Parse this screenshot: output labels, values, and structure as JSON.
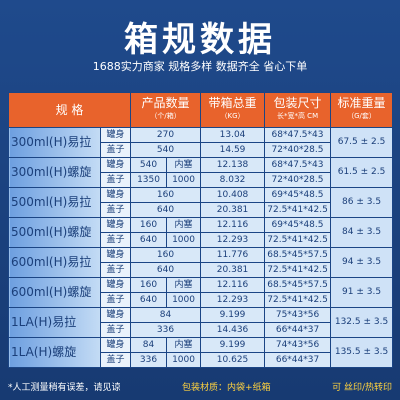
{
  "header": {
    "title": "箱规数据",
    "subtitle": "1688实力商家 规格多样 数据齐全 省心下单"
  },
  "table": {
    "columns": [
      {
        "label": "规 格"
      },
      {
        "label": "产品数量",
        "unit": "（个/箱）"
      },
      {
        "label": "带箱总重",
        "unit": "（KG）"
      },
      {
        "label": "包装尺寸",
        "unit": "长*宽*高 CM"
      },
      {
        "label": "标准重量",
        "unit": "（G/套）"
      }
    ],
    "rows": [
      {
        "spec": "300ml(H)易拉",
        "std": "67.5 ± 2.5",
        "parts": [
          {
            "part": "罐身",
            "qty": "270",
            "weight": "13.04",
            "size": "68*47.5*43"
          },
          {
            "part": "盖子",
            "qty": "540",
            "weight": "14.59",
            "size": "72*40*28.5"
          }
        ]
      },
      {
        "spec": "300ml(H)螺旋",
        "std": "61.5 ± 2.5",
        "parts": [
          {
            "part": "罐身",
            "qty": "540",
            "inner": "内塞",
            "weight": "12.138",
            "size": "68*47.5*43"
          },
          {
            "part": "盖子",
            "qty": "1350",
            "inner": "1000",
            "weight": "8.032",
            "size": "72*40*28.5"
          }
        ]
      },
      {
        "spec": "500ml(H)易拉",
        "std": "86 ± 3.5",
        "parts": [
          {
            "part": "罐身",
            "qty": "160",
            "weight": "10.408",
            "size": "69*45*48.5"
          },
          {
            "part": "盖子",
            "qty": "640",
            "weight": "20.381",
            "size": "72.5*41*42.5"
          }
        ]
      },
      {
        "spec": "500ml(H)螺旋",
        "std": "84 ± 3.5",
        "parts": [
          {
            "part": "罐身",
            "qty": "160",
            "inner": "内塞",
            "weight": "12.116",
            "size": "69*45*48.5"
          },
          {
            "part": "盖子",
            "qty": "640",
            "inner": "1000",
            "weight": "12.293",
            "size": "72.5*41*42.5"
          }
        ]
      },
      {
        "spec": "600ml(H)易拉",
        "std": "94 ± 3.5",
        "parts": [
          {
            "part": "罐身",
            "qty": "160",
            "weight": "11.776",
            "size": "68.5*45*57.5"
          },
          {
            "part": "盖子",
            "qty": "640",
            "weight": "20.381",
            "size": "72.5*41*42.5"
          }
        ]
      },
      {
        "spec": "600ml(H)螺旋",
        "std": "91 ± 3.5",
        "parts": [
          {
            "part": "罐身",
            "qty": "160",
            "inner": "内塞",
            "weight": "12.116",
            "size": "68.5*45*57.5"
          },
          {
            "part": "盖子",
            "qty": "640",
            "inner": "1000",
            "weight": "12.293",
            "size": "72.5*41*42.5"
          }
        ]
      },
      {
        "spec": "1LA(H)易拉",
        "std": "132.5 ± 3.5",
        "parts": [
          {
            "part": "罐身",
            "qty": "84",
            "weight": "9.199",
            "size": "75*43*56"
          },
          {
            "part": "盖子",
            "qty": "336",
            "weight": "14.436",
            "size": "66*44*37"
          }
        ]
      },
      {
        "spec": "1LA(H)螺旋",
        "std": "135.5 ± 3.5",
        "parts": [
          {
            "part": "罐身",
            "qty": "84",
            "inner": "内塞",
            "weight": "9.199",
            "size": "74*43*56"
          },
          {
            "part": "盖子",
            "qty": "336",
            "inner": "1000",
            "weight": "10.625",
            "size": "66*44*37"
          }
        ]
      }
    ]
  },
  "footer": {
    "note": "*人工测量稍有误差，请见谅",
    "material": "包装材质：内袋+纸箱",
    "print": "可 丝印/热转印"
  }
}
